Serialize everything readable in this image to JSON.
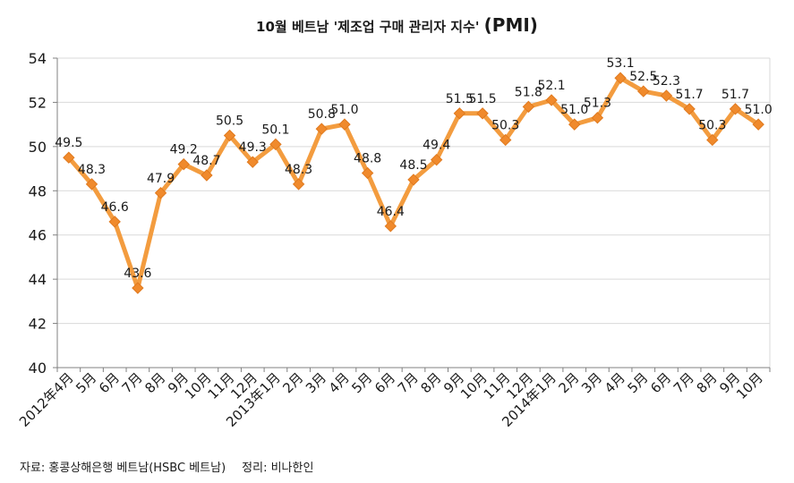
{
  "title": "10월 베트남 '제조업 구매 관리자 지수'",
  "title_suffix": "(PMI)",
  "source_label": "자료: 홍콩상해은행 베트남(HSBC 베트남)",
  "compiled_label": "정리: 비나한인",
  "colors": {
    "line": "#f39c3f",
    "marker": "#f08a2c",
    "grid": "#d9d9d9",
    "axis": "#808080"
  },
  "chart_data": {
    "type": "line",
    "title": "10월 베트남 '제조업 구매 관리자 지수' (PMI)",
    "xlabel": "",
    "ylabel": "",
    "ylim": [
      40,
      54
    ],
    "yticks": [
      40,
      42,
      44,
      46,
      48,
      50,
      52,
      54
    ],
    "grid": true,
    "legend": "none",
    "categories": [
      "2012年4月",
      "5月",
      "6月",
      "7月",
      "8月",
      "9月",
      "10月",
      "11月",
      "12月",
      "2013年1月",
      "2月",
      "3月",
      "4月",
      "5月",
      "6月",
      "7月",
      "8月",
      "9月",
      "10月",
      "11月",
      "12月",
      "2014年1月",
      "2月",
      "3月",
      "4月",
      "5月",
      "6月",
      "7月",
      "8月",
      "9月",
      "10月"
    ],
    "values": [
      49.5,
      48.3,
      46.6,
      43.6,
      47.9,
      49.2,
      48.7,
      50.5,
      49.3,
      50.1,
      48.3,
      50.8,
      51.0,
      48.8,
      46.4,
      48.5,
      49.4,
      51.5,
      51.5,
      50.3,
      51.8,
      52.1,
      51.0,
      51.3,
      53.1,
      52.5,
      52.3,
      51.7,
      50.3,
      51.7,
      51.0
    ],
    "data_labels": [
      "49.5",
      "48.3",
      "46.6",
      "43.6",
      "47.9",
      "49.2",
      "48.7",
      "50.5",
      "49.3",
      "50.1",
      "48.3",
      "50.8",
      "51.0",
      "48.8",
      "46.4",
      "48.5",
      "49.4",
      "51.5",
      "51.5",
      "50.3",
      "51.8",
      "52.1",
      "51.0",
      "51.3",
      "53.1",
      "52.5",
      "52.3",
      "51.7",
      "50.3",
      "51.7",
      "51.0"
    ]
  }
}
